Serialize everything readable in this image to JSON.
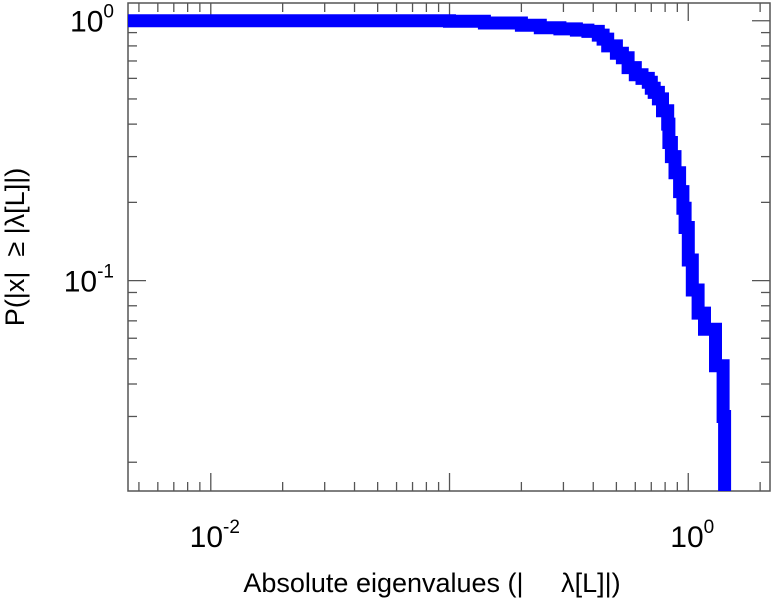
{
  "chart_data": {
    "type": "line",
    "style": "step",
    "xscale": "log",
    "yscale": "log",
    "xlim": [
      0.0045,
      2.2
    ],
    "ylim": [
      0.0155,
      1.17
    ],
    "x_tick_labels": [
      {
        "value": 0.01,
        "base": "10",
        "exponent": "-2"
      },
      {
        "value": 1,
        "base": "10",
        "exponent": "0"
      }
    ],
    "y_tick_labels": [
      {
        "value": 1,
        "base": "10",
        "exponent": "0"
      },
      {
        "value": 0.1,
        "base": "10",
        "exponent": "-1"
      }
    ],
    "xlabel": "Absolute eigenvalues (|     λ[L]|)",
    "ylabel": "P(|x|  ≥ |λ[L]|)",
    "grid": false,
    "legend": "none",
    "series": [
      {
        "color": "#0000ff",
        "x": [
          0.0045,
          0.1,
          0.14,
          0.2,
          0.24,
          0.29,
          0.34,
          0.38,
          0.42,
          0.44,
          0.46,
          0.5,
          0.53,
          0.56,
          0.6,
          0.64,
          0.68,
          0.7,
          0.72,
          0.75,
          0.78,
          0.82,
          0.83,
          0.85,
          0.88,
          0.92,
          0.95,
          0.97,
          1.0,
          1.04,
          1.1,
          1.17,
          1.3,
          1.4,
          1.42
        ],
        "y": [
          1.0,
          0.995,
          0.98,
          0.96,
          0.94,
          0.93,
          0.92,
          0.91,
          0.88,
          0.85,
          0.8,
          0.75,
          0.72,
          0.66,
          0.62,
          0.6,
          0.58,
          0.55,
          0.53,
          0.5,
          0.45,
          0.4,
          0.34,
          0.3,
          0.26,
          0.22,
          0.19,
          0.16,
          0.12,
          0.092,
          0.075,
          0.065,
          0.047,
          0.03,
          0.0155
        ]
      }
    ]
  }
}
